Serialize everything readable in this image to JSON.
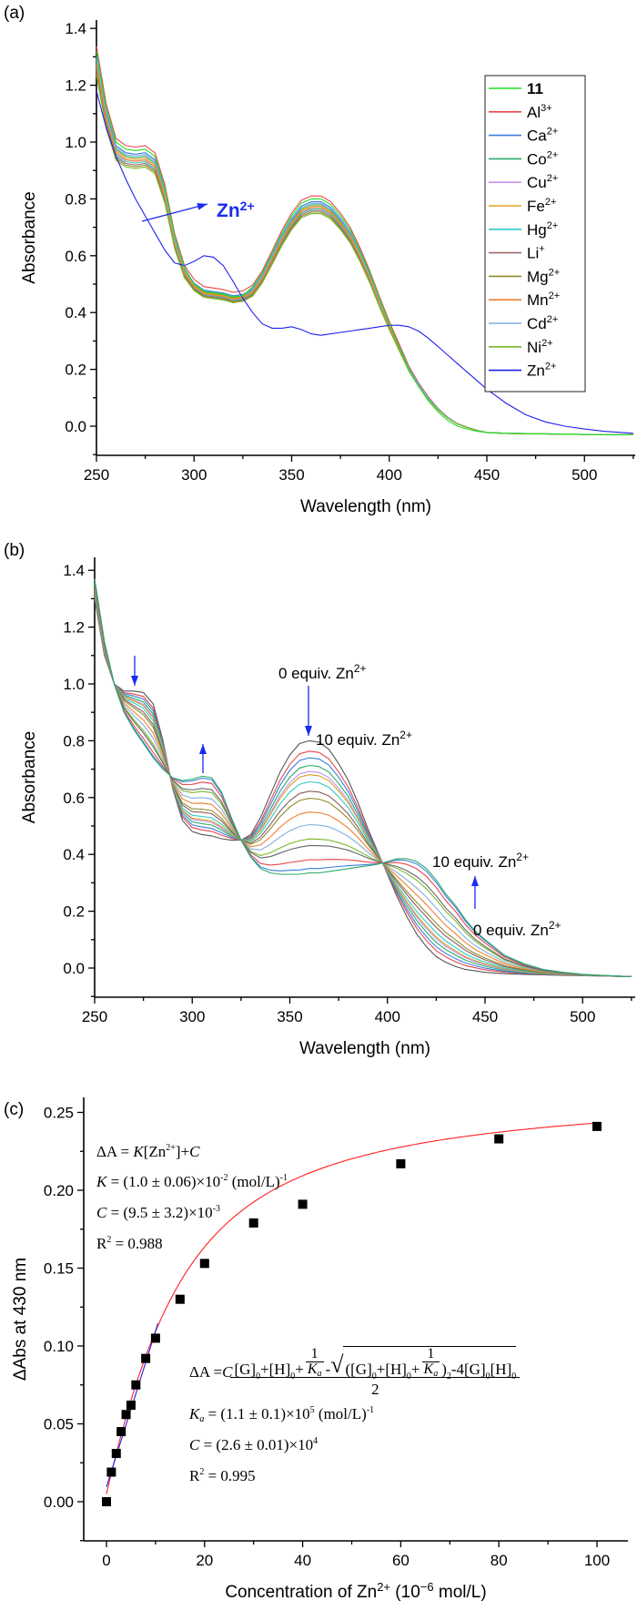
{
  "chart_data": [
    {
      "panel_label": "(a)",
      "type": "line",
      "xlabel": "Wavelength (nm)",
      "ylabel": "Absorbance",
      "xlim": [
        250,
        525
      ],
      "ylim": [
        -0.1,
        1.42
      ],
      "xticks": [
        250,
        300,
        350,
        400,
        450,
        500
      ],
      "yticks": [
        "0.0",
        "0.2",
        "0.4",
        "0.6",
        "0.8",
        "1.0",
        "1.2",
        "1.4"
      ],
      "grid": false,
      "legend_position": "top-right",
      "x": [
        250,
        255,
        260,
        265,
        270,
        275,
        280,
        285,
        290,
        295,
        300,
        305,
        310,
        315,
        320,
        325,
        330,
        335,
        340,
        345,
        350,
        355,
        360,
        365,
        370,
        375,
        380,
        385,
        390,
        395,
        400,
        405,
        410,
        415,
        420,
        425,
        430,
        435,
        440,
        445,
        450,
        460,
        470,
        480,
        490,
        500,
        510,
        525
      ],
      "ligand_absorbance": [
        1.32,
        1.12,
        1.0,
        0.975,
        0.97,
        0.975,
        0.95,
        0.84,
        0.67,
        0.56,
        0.5,
        0.475,
        0.47,
        0.465,
        0.455,
        0.46,
        0.49,
        0.54,
        0.61,
        0.68,
        0.74,
        0.785,
        0.8,
        0.8,
        0.78,
        0.74,
        0.69,
        0.62,
        0.54,
        0.45,
        0.36,
        0.28,
        0.2,
        0.14,
        0.09,
        0.05,
        0.02,
        0.0,
        -0.01,
        -0.018,
        -0.022,
        -0.025,
        -0.026,
        -0.027,
        -0.028,
        -0.029,
        -0.03,
        -0.03
      ],
      "zn_absorbance": [
        1.18,
        1.05,
        0.95,
        0.87,
        0.8,
        0.74,
        0.68,
        0.62,
        0.575,
        0.565,
        0.58,
        0.6,
        0.595,
        0.565,
        0.51,
        0.45,
        0.4,
        0.36,
        0.345,
        0.345,
        0.35,
        0.34,
        0.325,
        0.32,
        0.325,
        0.33,
        0.335,
        0.34,
        0.345,
        0.35,
        0.355,
        0.355,
        0.35,
        0.335,
        0.31,
        0.28,
        0.25,
        0.22,
        0.19,
        0.16,
        0.13,
        0.08,
        0.04,
        0.015,
        0.0,
        -0.01,
        -0.018,
        -0.025
      ],
      "series": [
        {
          "name": "11",
          "charge": "",
          "bold": true,
          "color": "#22dd22",
          "peak_absorbance": 0.8,
          "curve": "ligand"
        },
        {
          "name": "Al",
          "charge": "3+",
          "color": "#e8474b",
          "peak_absorbance": 0.81,
          "curve": "metal"
        },
        {
          "name": "Ca",
          "charge": "2+",
          "color": "#3a7fdc",
          "peak_absorbance": 0.79,
          "curve": "metal"
        },
        {
          "name": "Co",
          "charge": "2+",
          "color": "#2aaa6a",
          "peak_absorbance": 0.78,
          "curve": "metal"
        },
        {
          "name": "Cu",
          "charge": "2+",
          "color": "#c68ff0",
          "peak_absorbance": 0.77,
          "curve": "metal"
        },
        {
          "name": "Fe",
          "charge": "2+",
          "color": "#e0a020",
          "peak_absorbance": 0.775,
          "curve": "metal"
        },
        {
          "name": "Hg",
          "charge": "2+",
          "color": "#30c8c8",
          "peak_absorbance": 0.765,
          "curve": "metal"
        },
        {
          "name": "Li",
          "charge": "+",
          "color": "#9a6a6a",
          "peak_absorbance": 0.76,
          "curve": "metal"
        },
        {
          "name": "Mg",
          "charge": "2+",
          "color": "#8f8a2a",
          "peak_absorbance": 0.755,
          "curve": "metal"
        },
        {
          "name": "Mn",
          "charge": "2+",
          "color": "#f07f30",
          "peak_absorbance": 0.77,
          "curve": "metal"
        },
        {
          "name": "Cd",
          "charge": "2+",
          "color": "#7faee0",
          "peak_absorbance": 0.785,
          "curve": "metal"
        },
        {
          "name": "Ni",
          "charge": "2+",
          "color": "#7ab82a",
          "peak_absorbance": 0.75,
          "curve": "metal"
        },
        {
          "name": "Zn",
          "charge": "2+",
          "color": "#2020f0",
          "curve": "zn"
        }
      ],
      "annotation": {
        "text": "Zn",
        "charge": "2+",
        "color": "#1a2cf0"
      }
    },
    {
      "panel_label": "(b)",
      "type": "line",
      "xlabel": "Wavelength (nm)",
      "ylabel": "Absorbance",
      "xlim": [
        250,
        525
      ],
      "ylim": [
        -0.1,
        1.42
      ],
      "xticks": [
        250,
        300,
        350,
        400,
        450,
        500
      ],
      "yticks": [
        "0.0",
        "0.2",
        "0.4",
        "0.6",
        "0.8",
        "1.0",
        "1.2",
        "1.4"
      ],
      "grid": false,
      "x": [
        250,
        255,
        260,
        265,
        270,
        275,
        280,
        285,
        290,
        295,
        300,
        305,
        310,
        315,
        320,
        325,
        330,
        335,
        340,
        345,
        350,
        355,
        360,
        365,
        370,
        375,
        380,
        385,
        390,
        395,
        400,
        405,
        410,
        415,
        420,
        425,
        430,
        435,
        440,
        445,
        450,
        460,
        470,
        480,
        490,
        500,
        510,
        525
      ],
      "equiv_0_absorbance": [
        1.3,
        1.1,
        1.0,
        0.975,
        0.975,
        0.97,
        0.93,
        0.8,
        0.63,
        0.52,
        0.48,
        0.47,
        0.465,
        0.455,
        0.45,
        0.45,
        0.47,
        0.53,
        0.61,
        0.69,
        0.75,
        0.79,
        0.8,
        0.795,
        0.77,
        0.72,
        0.66,
        0.58,
        0.49,
        0.41,
        0.33,
        0.25,
        0.18,
        0.12,
        0.075,
        0.04,
        0.02,
        0.005,
        -0.005,
        -0.01,
        -0.015,
        -0.02,
        -0.022,
        -0.024,
        -0.026,
        -0.027,
        -0.028,
        -0.03
      ],
      "equiv_10_absorbance": [
        1.37,
        1.15,
        1.0,
        0.9,
        0.84,
        0.79,
        0.74,
        0.7,
        0.67,
        0.66,
        0.665,
        0.675,
        0.67,
        0.62,
        0.53,
        0.45,
        0.39,
        0.35,
        0.335,
        0.33,
        0.33,
        0.33,
        0.335,
        0.335,
        0.34,
        0.345,
        0.35,
        0.355,
        0.36,
        0.365,
        0.375,
        0.385,
        0.385,
        0.375,
        0.35,
        0.31,
        0.26,
        0.22,
        0.17,
        0.13,
        0.1,
        0.045,
        0.015,
        -0.005,
        -0.015,
        -0.022,
        -0.026,
        -0.03
      ],
      "equivalents": [
        0,
        0.1,
        0.2,
        0.3,
        0.4,
        0.5,
        0.6,
        0.8,
        1,
        1.5,
        2,
        3,
        4,
        6,
        8,
        10
      ],
      "colors": [
        "#555555",
        "#e8474b",
        "#3a7fdc",
        "#2aaa6a",
        "#c68ff0",
        "#d4a020",
        "#30c8c8",
        "#8a5a5a",
        "#8f8a2a",
        "#f07f30",
        "#7faee0",
        "#7ab82a",
        "#666666",
        "#e8474b",
        "#3a7fdc",
        "#2aaa6a"
      ],
      "annotations": {
        "peak_top": "0 equiv. Zn",
        "peak_bottom": "10 equiv. Zn",
        "tail_top": "10 equiv. Zn",
        "tail_bottom": "0 equiv. Zn",
        "charge": "2+",
        "arrow_color": "#1a2cf0"
      }
    },
    {
      "panel_label": "(c)",
      "type": "scatter",
      "xlabel": "Concentration of Zn",
      "xlabel_charge": "2+",
      "xlabel_units_pre": " (10",
      "xlabel_units_exp": "−6",
      "xlabel_units_post": " mol/L)",
      "ylabel": "ΔAbs at 430 nm",
      "xlim": [
        -4,
        104
      ],
      "ylim": [
        -0.025,
        0.255
      ],
      "xticks": [
        0,
        20,
        40,
        60,
        80,
        100
      ],
      "yticks": [
        "0.00",
        "0.05",
        "0.10",
        "0.15",
        "0.20",
        "0.25"
      ],
      "grid": false,
      "x": [
        0,
        1,
        2,
        3,
        4,
        5,
        6,
        8,
        10,
        15,
        20,
        30,
        40,
        60,
        80,
        100
      ],
      "y": [
        0.0,
        0.019,
        0.031,
        0.045,
        0.056,
        0.062,
        0.075,
        0.092,
        0.105,
        0.13,
        0.153,
        0.179,
        0.191,
        0.217,
        0.233,
        0.241
      ],
      "marker_color": "#000000",
      "linear_fit": {
        "color": "#2020f0",
        "slope": 0.01,
        "intercept": 0.0095,
        "x_range": [
          0,
          10.5
        ]
      },
      "nonlinear_fit": {
        "color": "#ff2020",
        "host": 10,
        "Ka_per_uM": 0.11,
        "scale": 0.0262,
        "x_range": [
          0,
          100
        ]
      },
      "equation_linear": {
        "line1": {
          "lhs": "ΔA = ",
          "K": "K",
          "rest": "[Zn",
          "charge": "2+",
          "tail": "]+",
          "C": "C"
        },
        "line2": {
          "K": "K",
          "text": " = (1.0 ± 0.06)×10",
          "exp": "-2",
          "unit": " (mol/L)",
          "unit_exp": "-1"
        },
        "line3": {
          "C": "C",
          "text": " =  (9.5 ± 3.2)×10",
          "exp": "-3"
        },
        "line4": {
          "R": "R",
          "exp": "2",
          "text": " = 0.988"
        }
      },
      "equation_binding": {
        "lhs": "ΔA = ",
        "C": "C",
        "num_start": "[G]",
        "sub0": "0",
        "plus_h": "+[H]",
        "plus": "+",
        "one": "1",
        "Ka": "K",
        "Ka_sub": "a",
        "minus": "-",
        "sqrt_open": "([G]",
        "close_sq": ")",
        "sq": "2",
        "minus4": "-4[G]",
        "h_end": "[H]",
        "den": "2",
        "ka_line": {
          "text": " = (1.1 ± 0.1)×10",
          "exp": "5",
          "unit": " (mol/L)",
          "unit_exp": "-1"
        },
        "c_line": {
          "text": " = (2.6 ± 0.01)×10",
          "exp": "4"
        },
        "r_line": {
          "R": "R",
          "exp": "2",
          "text": " = 0.995"
        }
      }
    }
  ]
}
